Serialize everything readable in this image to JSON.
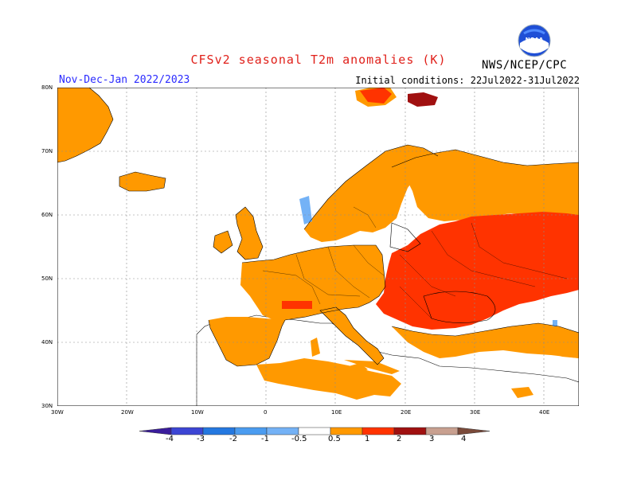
{
  "header": {
    "title": "CFSv2 seasonal T2m anomalies (K)",
    "period": "Nov-Dec-Jan 2022/2023",
    "initial_conditions": "Initial conditions: 22Jul2022-31Jul2022",
    "agency": "NWS/NCEP/CPC",
    "logo_text": "NOAA"
  },
  "map": {
    "lat_labels": [
      "80N",
      "70N",
      "60N",
      "50N",
      "40N",
      "30N"
    ],
    "lon_labels": [
      "30W",
      "20W",
      "10W",
      "0",
      "10E",
      "20E",
      "30E",
      "40E"
    ],
    "colors": {
      "ocean": "#ffffff",
      "coast": "#000000",
      "grid": "#8c8c8c",
      "warm_05_1": "#ff9900",
      "warm_1_2": "#ff3300",
      "warm_2_3": "#a01010",
      "cool_05_1": "#74b2f6"
    }
  },
  "colorbar": {
    "labels": [
      "-4",
      "-3",
      "-2",
      "-1",
      "-0.5",
      "0.5",
      "1",
      "2",
      "3",
      "4"
    ],
    "colors": [
      "#3a1c9c",
      "#3c45d4",
      "#2478e0",
      "#4b9cf0",
      "#74b2f6",
      "#ffffff",
      "#ff9900",
      "#ff3300",
      "#a01010",
      "#c8a090",
      "#7a4a3a"
    ]
  }
}
